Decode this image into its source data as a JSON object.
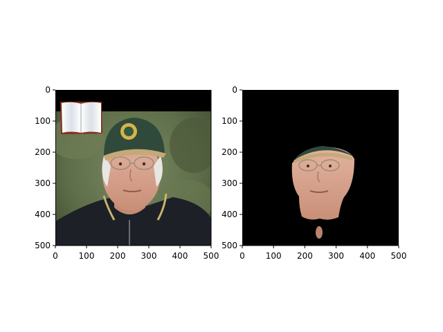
{
  "figure": {
    "panels": [
      {
        "id": "original",
        "image": "photo of an older man in a dark green baseball cap with a round badge, wire-rim glasses and a dark zip jacket; blurred green foliage background; black band across the top with a small open-book icon in the top-left",
        "x_ticks": [
          "0",
          "100",
          "200",
          "300",
          "400",
          "500"
        ],
        "y_ticks": [
          "0",
          "100",
          "200",
          "300",
          "400",
          "500"
        ]
      },
      {
        "id": "segmented",
        "image": "same photo with everything except the man's face and cap masked out in black",
        "x_ticks": [
          "0",
          "100",
          "200",
          "300",
          "400",
          "500"
        ],
        "y_ticks": [
          "0",
          "100",
          "200",
          "300",
          "400",
          "500"
        ]
      }
    ],
    "colors": {
      "mask": "#000000",
      "cap": "#2f4a3a",
      "skin": "#d9a48c",
      "jacket": "#1d2027",
      "background_foliage": "#5e6e4a"
    }
  }
}
